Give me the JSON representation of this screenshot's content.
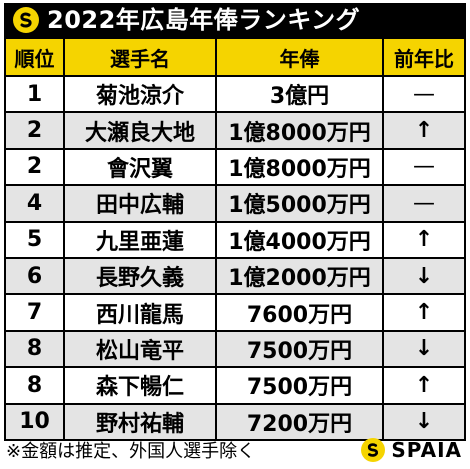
{
  "title": "2022年広島年俸ランキング",
  "headers": {
    "rank": "順位",
    "name": "選手名",
    "salary": "年俸",
    "change": "前年比"
  },
  "rows": [
    {
      "rank": "1",
      "name": "菊池涼介",
      "salary": "3億円",
      "change": "—"
    },
    {
      "rank": "2",
      "name": "大瀬良大地",
      "salary": "1億8000万円",
      "change": "↑"
    },
    {
      "rank": "2",
      "name": "會沢翼",
      "salary": "1億8000万円",
      "change": "—"
    },
    {
      "rank": "4",
      "name": "田中広輔",
      "salary": "1億5000万円",
      "change": "—"
    },
    {
      "rank": "5",
      "name": "九里亜蓮",
      "salary": "1億4000万円",
      "change": "↑"
    },
    {
      "rank": "6",
      "name": "長野久義",
      "salary": "1億2000万円",
      "change": "↓"
    },
    {
      "rank": "7",
      "name": "西川龍馬",
      "salary": "7600万円",
      "change": "↑"
    },
    {
      "rank": "8",
      "name": "松山竜平",
      "salary": "7500万円",
      "change": "↓"
    },
    {
      "rank": "8",
      "name": "森下暢仁",
      "salary": "7500万円",
      "change": "↑"
    },
    {
      "rank": "10",
      "name": "野村祐輔",
      "salary": "7200万円",
      "change": "↓"
    }
  ],
  "footnote": "※金額は推定、外国人選手除く",
  "brand": "SPAIA",
  "colors": {
    "accent": "#f5d400",
    "banner": "#000000",
    "row_alt": "#e4e4e4"
  },
  "icons": {
    "banner_logo": "spaia-logo-icon",
    "brand_logo": "spaia-logo-icon"
  }
}
